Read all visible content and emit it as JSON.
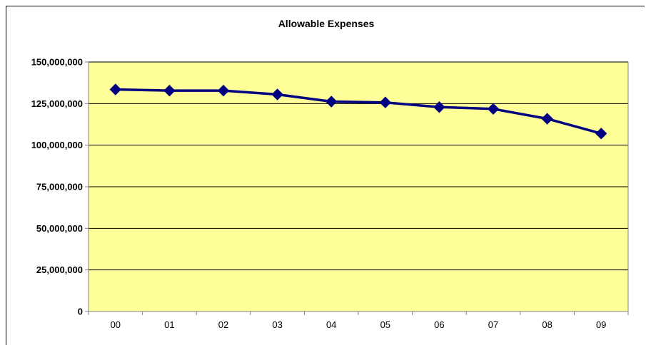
{
  "chart_data": {
    "type": "line",
    "title": "Allowable Expenses",
    "xlabel": "",
    "ylabel": "",
    "categories": [
      "00",
      "01",
      "02",
      "03",
      "04",
      "05",
      "06",
      "07",
      "08",
      "09"
    ],
    "series": [
      {
        "values": [
          133500000,
          132800000,
          132800000,
          130500000,
          126200000,
          125700000,
          122900000,
          121800000,
          115900000,
          107000000
        ]
      }
    ],
    "ylim": [
      0,
      150000000
    ],
    "yticks": [
      0,
      25000000,
      50000000,
      75000000,
      100000000,
      125000000,
      150000000
    ],
    "ytick_labels": [
      "0",
      "25,000,000",
      "50,000,000",
      "75,000,000",
      "100,000,000",
      "125,000,000",
      "150,000,000"
    ],
    "grid": true,
    "legend": "none",
    "colors": {
      "plot_background": "#FFFF99",
      "line": "#000080",
      "marker": "#000080",
      "gridline": "#000000"
    },
    "marker": "diamond"
  }
}
